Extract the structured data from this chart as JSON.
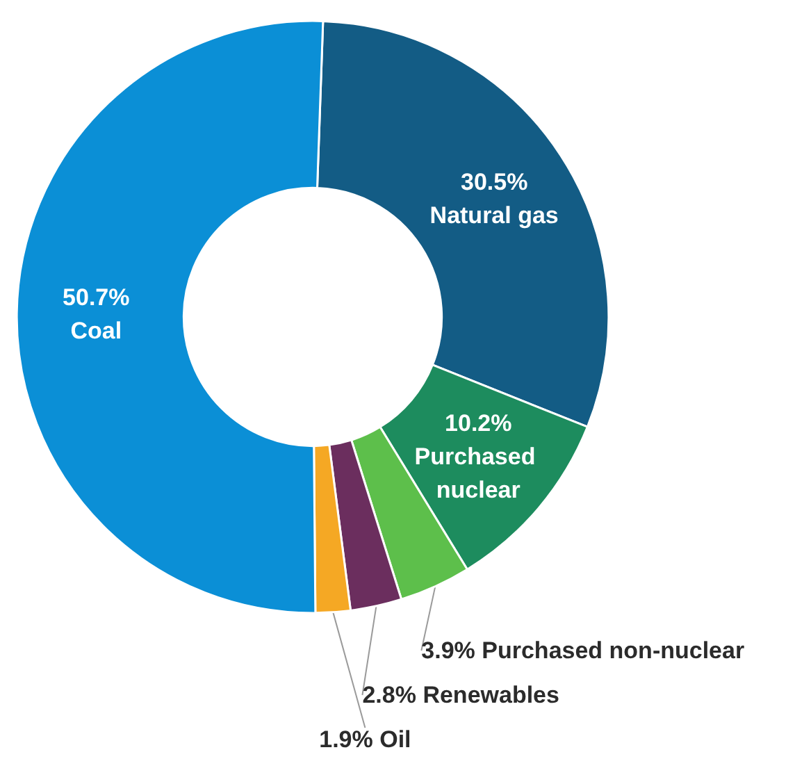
{
  "chart_data": {
    "type": "donut",
    "categories": [
      "Natural gas",
      "Purchased nuclear",
      "Purchased non-nuclear",
      "Renewables",
      "Oil",
      "Coal"
    ],
    "values": [
      30.5,
      10.2,
      3.9,
      2.8,
      1.9,
      50.7
    ],
    "value_labels": [
      "30.5%",
      "10.2%",
      "3.9%",
      "2.8%",
      "1.9%",
      "50.7%"
    ],
    "colors": [
      "#135c85",
      "#1d8c5e",
      "#5dbf4b",
      "#6b2e5e",
      "#f5a824",
      "#0b8fd6"
    ],
    "legend": false
  }
}
